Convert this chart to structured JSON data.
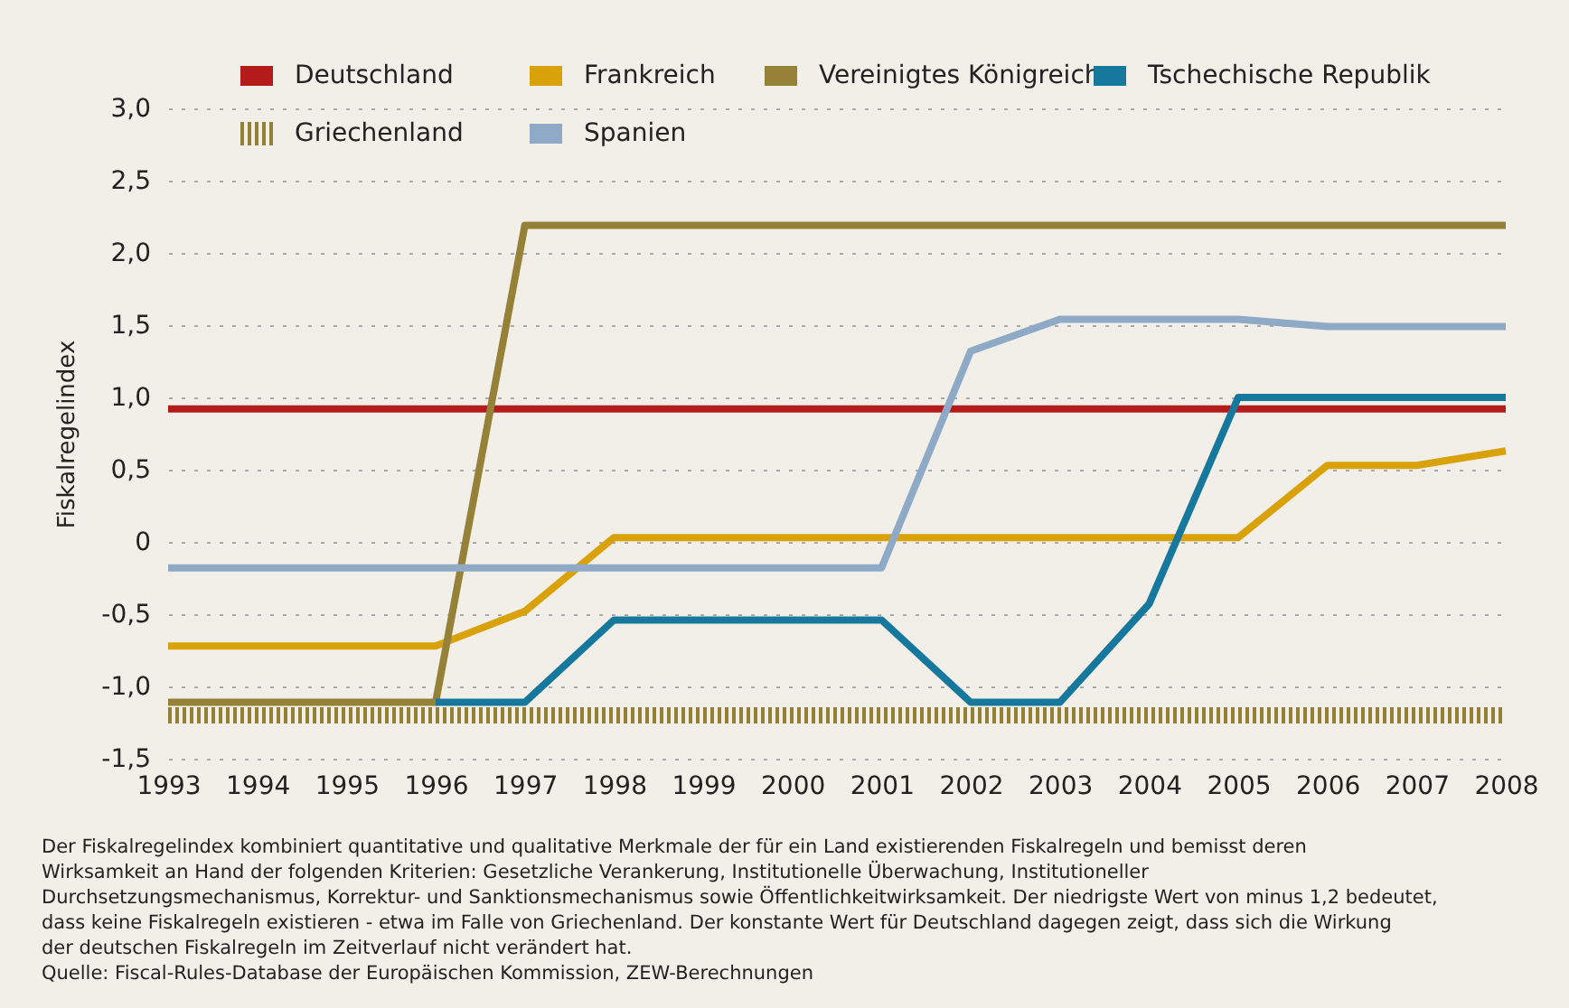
{
  "chart_data": {
    "type": "line",
    "ylabel": "Fiskalregelindex",
    "x": [
      1993,
      1994,
      1995,
      1996,
      1997,
      1998,
      1999,
      2000,
      2001,
      2002,
      2003,
      2004,
      2005,
      2006,
      2007,
      2008
    ],
    "series": [
      {
        "name": "Deutschland",
        "color": "#b41c1c",
        "values": [
          0.92,
          0.92,
          0.92,
          0.92,
          0.92,
          0.92,
          0.92,
          0.92,
          0.92,
          0.92,
          0.92,
          0.92,
          0.92,
          0.92,
          0.92,
          0.92
        ]
      },
      {
        "name": "Frankreich",
        "color": "#d9a20a",
        "values": [
          -0.72,
          -0.72,
          -0.72,
          -0.72,
          -0.48,
          0.03,
          0.03,
          0.03,
          0.03,
          0.03,
          0.03,
          0.03,
          0.03,
          0.53,
          0.53,
          0.63
        ]
      },
      {
        "name": "Vereinigtes Königreich",
        "color": "#958137",
        "values": [
          -1.11,
          -1.11,
          -1.11,
          -1.11,
          2.19,
          2.19,
          2.19,
          2.19,
          2.19,
          2.19,
          2.19,
          2.19,
          2.19,
          2.19,
          2.19,
          2.19
        ]
      },
      {
        "name": "Tschechische Republik",
        "color": "#17789e",
        "values": [
          null,
          null,
          null,
          -1.11,
          -1.11,
          -0.54,
          -0.54,
          -0.54,
          -0.54,
          -1.11,
          -1.11,
          -0.43,
          1.0,
          1.0,
          1.0,
          1.0
        ]
      },
      {
        "name": "Griechenland",
        "color": "#958137",
        "line_style": "dotted",
        "values": [
          -1.2,
          -1.2,
          -1.2,
          -1.2,
          -1.2,
          -1.2,
          -1.2,
          -1.2,
          -1.2,
          -1.2,
          -1.2,
          -1.2,
          -1.2,
          -1.2,
          -1.2,
          -1.2
        ]
      },
      {
        "name": "Spanien",
        "color": "#8eaac6",
        "values": [
          -0.18,
          -0.18,
          -0.18,
          -0.18,
          -0.18,
          -0.18,
          -0.18,
          -0.18,
          -0.18,
          1.32,
          1.54,
          1.54,
          1.54,
          1.49,
          1.49,
          1.49
        ]
      }
    ],
    "xlim": [
      1993,
      2008
    ],
    "xticks": [
      1993,
      1994,
      1995,
      1996,
      1997,
      1998,
      1999,
      2000,
      2001,
      2002,
      2003,
      2004,
      2005,
      2006,
      2007,
      2008
    ],
    "ylim": [
      -1.5,
      3.0
    ],
    "yticks": [
      {
        "value": 3.0,
        "label": "3,0"
      },
      {
        "value": 2.5,
        "label": "2,5"
      },
      {
        "value": 2.0,
        "label": "2,0"
      },
      {
        "value": 1.5,
        "label": "1,5"
      },
      {
        "value": 1.0,
        "label": "1,0"
      },
      {
        "value": 0.5,
        "label": "0,5"
      },
      {
        "value": 0,
        "label": "0"
      },
      {
        "value": -0.5,
        "label": "-0,5"
      },
      {
        "value": -1.0,
        "label": "-1,0"
      },
      {
        "value": -1.5,
        "label": "-1,5"
      }
    ],
    "grid": "y",
    "legend": "top",
    "line_style": "solid",
    "marker": "none",
    "annotations": [
      "Der Fiskalregelindex kombiniert quantitative und qualitative Merkmale der für ein Land existierenden Fiskalregeln und bemisst deren Wirksamkeit an Hand der folgenden Kriterien: Gesetzliche Verankerung, Institutionelle Überwachung, Institutioneller Durchsetzungsmechanismus, Korrektur- und Sanktionsmechanismus sowie Öffentlichkeitwirksamkeit. Der niedrigste Wert von minus 1,2 bedeutet, dass keine Fiskalregeln existieren - etwa im Falle von Griechenland. Der konstante Wert für Deutschland dagegen zeigt, dass sich die Wirkung der deutschen Fiskalregeln im Zeitverlauf nicht verändert hat.",
      "Quelle: Fiscal-Rules-Database der Europäischen Kommission, ZEW-Berechnungen"
    ]
  }
}
